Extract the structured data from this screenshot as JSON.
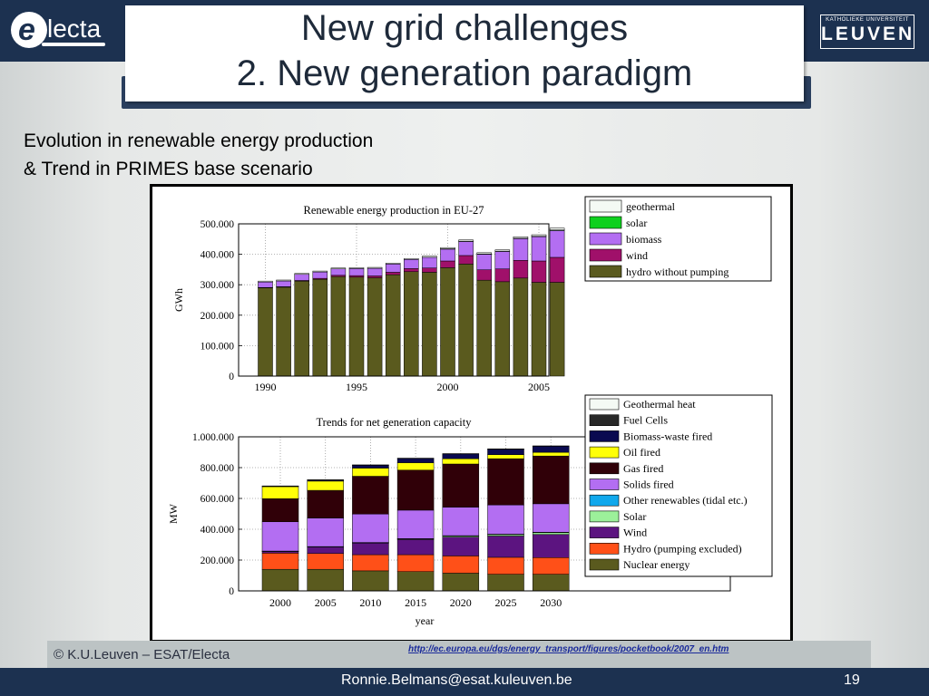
{
  "slide": {
    "title_line1": "New grid challenges",
    "title_line2": "2. New generation paradigm",
    "subtitle_line1": "Evolution in renewable energy production",
    "subtitle_line2": "& Trend in PRIMES base scenario",
    "copyright": "© K.U.Leuven – ESAT/Electa",
    "source_url": "http://ec.europa.eu/dgs/energy_transport/figures/pocketbook/2007_en.htm",
    "email": "Ronnie.Belmans@esat.kuleuven.be",
    "page_number": "19",
    "logo_left_text": "lecta",
    "logo_left_letter": "e",
    "logo_right_small": "KATHOLIEKE UNIVERSITEIT",
    "logo_right_big": "LEUVEN",
    "colors": {
      "bar_navy": "#1c3150",
      "title_text": "#1e2a3a"
    }
  },
  "chart_data": [
    {
      "type": "bar",
      "stacked": true,
      "title": "Renewable energy production in EU-27",
      "ylabel": "GWh",
      "ylim": [
        0,
        500000
      ],
      "yticks": [
        0,
        100000,
        200000,
        300000,
        400000,
        500000
      ],
      "ytick_labels": [
        "0",
        "100.000",
        "200.000",
        "300.000",
        "400.000",
        "500.000"
      ],
      "xticks": [
        1990,
        1995,
        2000,
        2005
      ],
      "xtick_labels": [
        "1990",
        "1995",
        "2000",
        "2005"
      ],
      "grid": true,
      "legend_position": "top-right",
      "categories": [
        1990,
        1991,
        1992,
        1993,
        1994,
        1995,
        1996,
        1997,
        1998,
        1999,
        2000,
        2001,
        2002,
        2003,
        2004,
        2005,
        2006
      ],
      "series": [
        {
          "name": "hydro without pumping",
          "color": "#5a5a1e",
          "values": [
            290000,
            292000,
            312000,
            318000,
            327000,
            325000,
            323000,
            333000,
            343000,
            341000,
            356000,
            368000,
            315000,
            310000,
            322000,
            308000,
            308000
          ]
        },
        {
          "name": "wind",
          "color": "#a0106a",
          "values": [
            1000,
            1500,
            2000,
            3000,
            4000,
            5000,
            6000,
            8000,
            10000,
            14000,
            22000,
            28000,
            34000,
            42000,
            58000,
            70000,
            82000
          ]
        },
        {
          "name": "biomass",
          "color": "#b36ef2",
          "values": [
            18000,
            19000,
            20000,
            21000,
            21000,
            23000,
            25000,
            27000,
            30000,
            35000,
            40000,
            47000,
            52000,
            58000,
            72000,
            80000,
            88000
          ]
        },
        {
          "name": "solar",
          "color": "#0ed01e",
          "values": [
            0,
            0,
            0,
            0,
            0,
            0,
            0,
            0,
            0,
            0,
            100,
            200,
            300,
            500,
            700,
            1200,
            2000
          ]
        },
        {
          "name": "geothermal",
          "color": "#f4faf4",
          "values": [
            3000,
            3000,
            3000,
            3000,
            3000,
            3000,
            3000,
            3000,
            3000,
            4000,
            4000,
            4000,
            4000,
            4000,
            5000,
            5000,
            6000
          ]
        }
      ]
    },
    {
      "type": "bar",
      "stacked": true,
      "title": "Trends for net generation capacity",
      "xlabel": "year",
      "ylabel": "MW",
      "ylim": [
        0,
        1000000
      ],
      "yticks": [
        0,
        200000,
        400000,
        600000,
        800000,
        1000000
      ],
      "ytick_labels": [
        "0",
        "200.000",
        "400.000",
        "600.000",
        "800.000",
        "1.000.000"
      ],
      "grid": true,
      "legend_position": "top-right",
      "categories": [
        "2000",
        "2005",
        "2010",
        "2015",
        "2020",
        "2025",
        "2030"
      ],
      "series": [
        {
          "name": "Nuclear energy",
          "color": "#5a5a1e",
          "values": [
            140000,
            140000,
            130000,
            125000,
            115000,
            108000,
            108000
          ]
        },
        {
          "name": "Hydro (pumping excluded)",
          "color": "#ff5018",
          "values": [
            105000,
            103000,
            105000,
            110000,
            112000,
            110000,
            108000
          ]
        },
        {
          "name": "Wind",
          "color": "#5c1480",
          "values": [
            12000,
            42000,
            75000,
            98000,
            122000,
            138000,
            150000
          ]
        },
        {
          "name": "Solar",
          "color": "#9cf09a",
          "values": [
            1000,
            2000,
            3000,
            5000,
            8000,
            10000,
            12000
          ]
        },
        {
          "name": "Other renewables (tidal etc.)",
          "color": "#10a8ec",
          "values": [
            500,
            500,
            1000,
            1000,
            1500,
            2000,
            2500
          ]
        },
        {
          "name": "Solids fired",
          "color": "#b36ef2",
          "values": [
            190000,
            185000,
            185000,
            185000,
            185000,
            190000,
            185000
          ]
        },
        {
          "name": "Gas fired",
          "color": "#300008",
          "values": [
            150000,
            180000,
            245000,
            260000,
            280000,
            300000,
            310000
          ]
        },
        {
          "name": "Oil fired",
          "color": "#ffff08",
          "values": [
            78000,
            60000,
            53000,
            48000,
            34000,
            26000,
            24000
          ]
        },
        {
          "name": "Biomass-waste fired",
          "color": "#0a0a50",
          "values": [
            4000,
            8000,
            20000,
            28000,
            32000,
            36000,
            40000
          ]
        },
        {
          "name": "Fuel Cells",
          "color": "#282828",
          "values": [
            0,
            0,
            0,
            0,
            0,
            0,
            0
          ]
        },
        {
          "name": "Geothermal heat",
          "color": "#f4faf4",
          "values": [
            1000,
            1000,
            1000,
            1500,
            1500,
            2000,
            2000
          ]
        }
      ]
    }
  ]
}
